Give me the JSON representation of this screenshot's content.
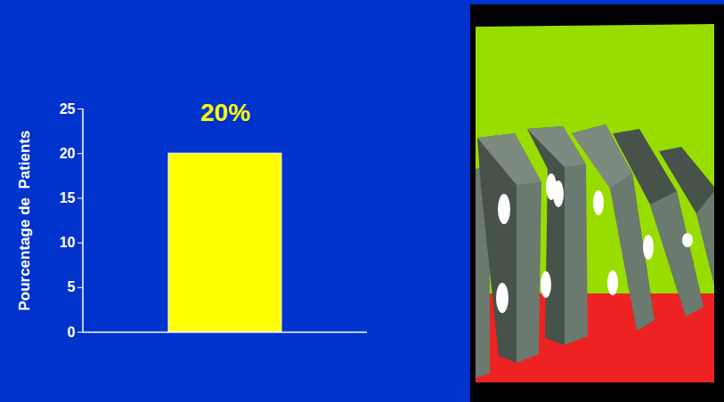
{
  "chart_data": {
    "type": "bar",
    "categories": [
      null
    ],
    "values": [
      20
    ],
    "value_labels": [
      "20%"
    ],
    "data_labels": true,
    "color": "#ffff00",
    "ylabel": "Pourcentage de  Patients",
    "ylim": [
      0,
      25
    ],
    "yticks": [
      0,
      5,
      10,
      15,
      20,
      25
    ],
    "tick_labels": "y"
  }
}
